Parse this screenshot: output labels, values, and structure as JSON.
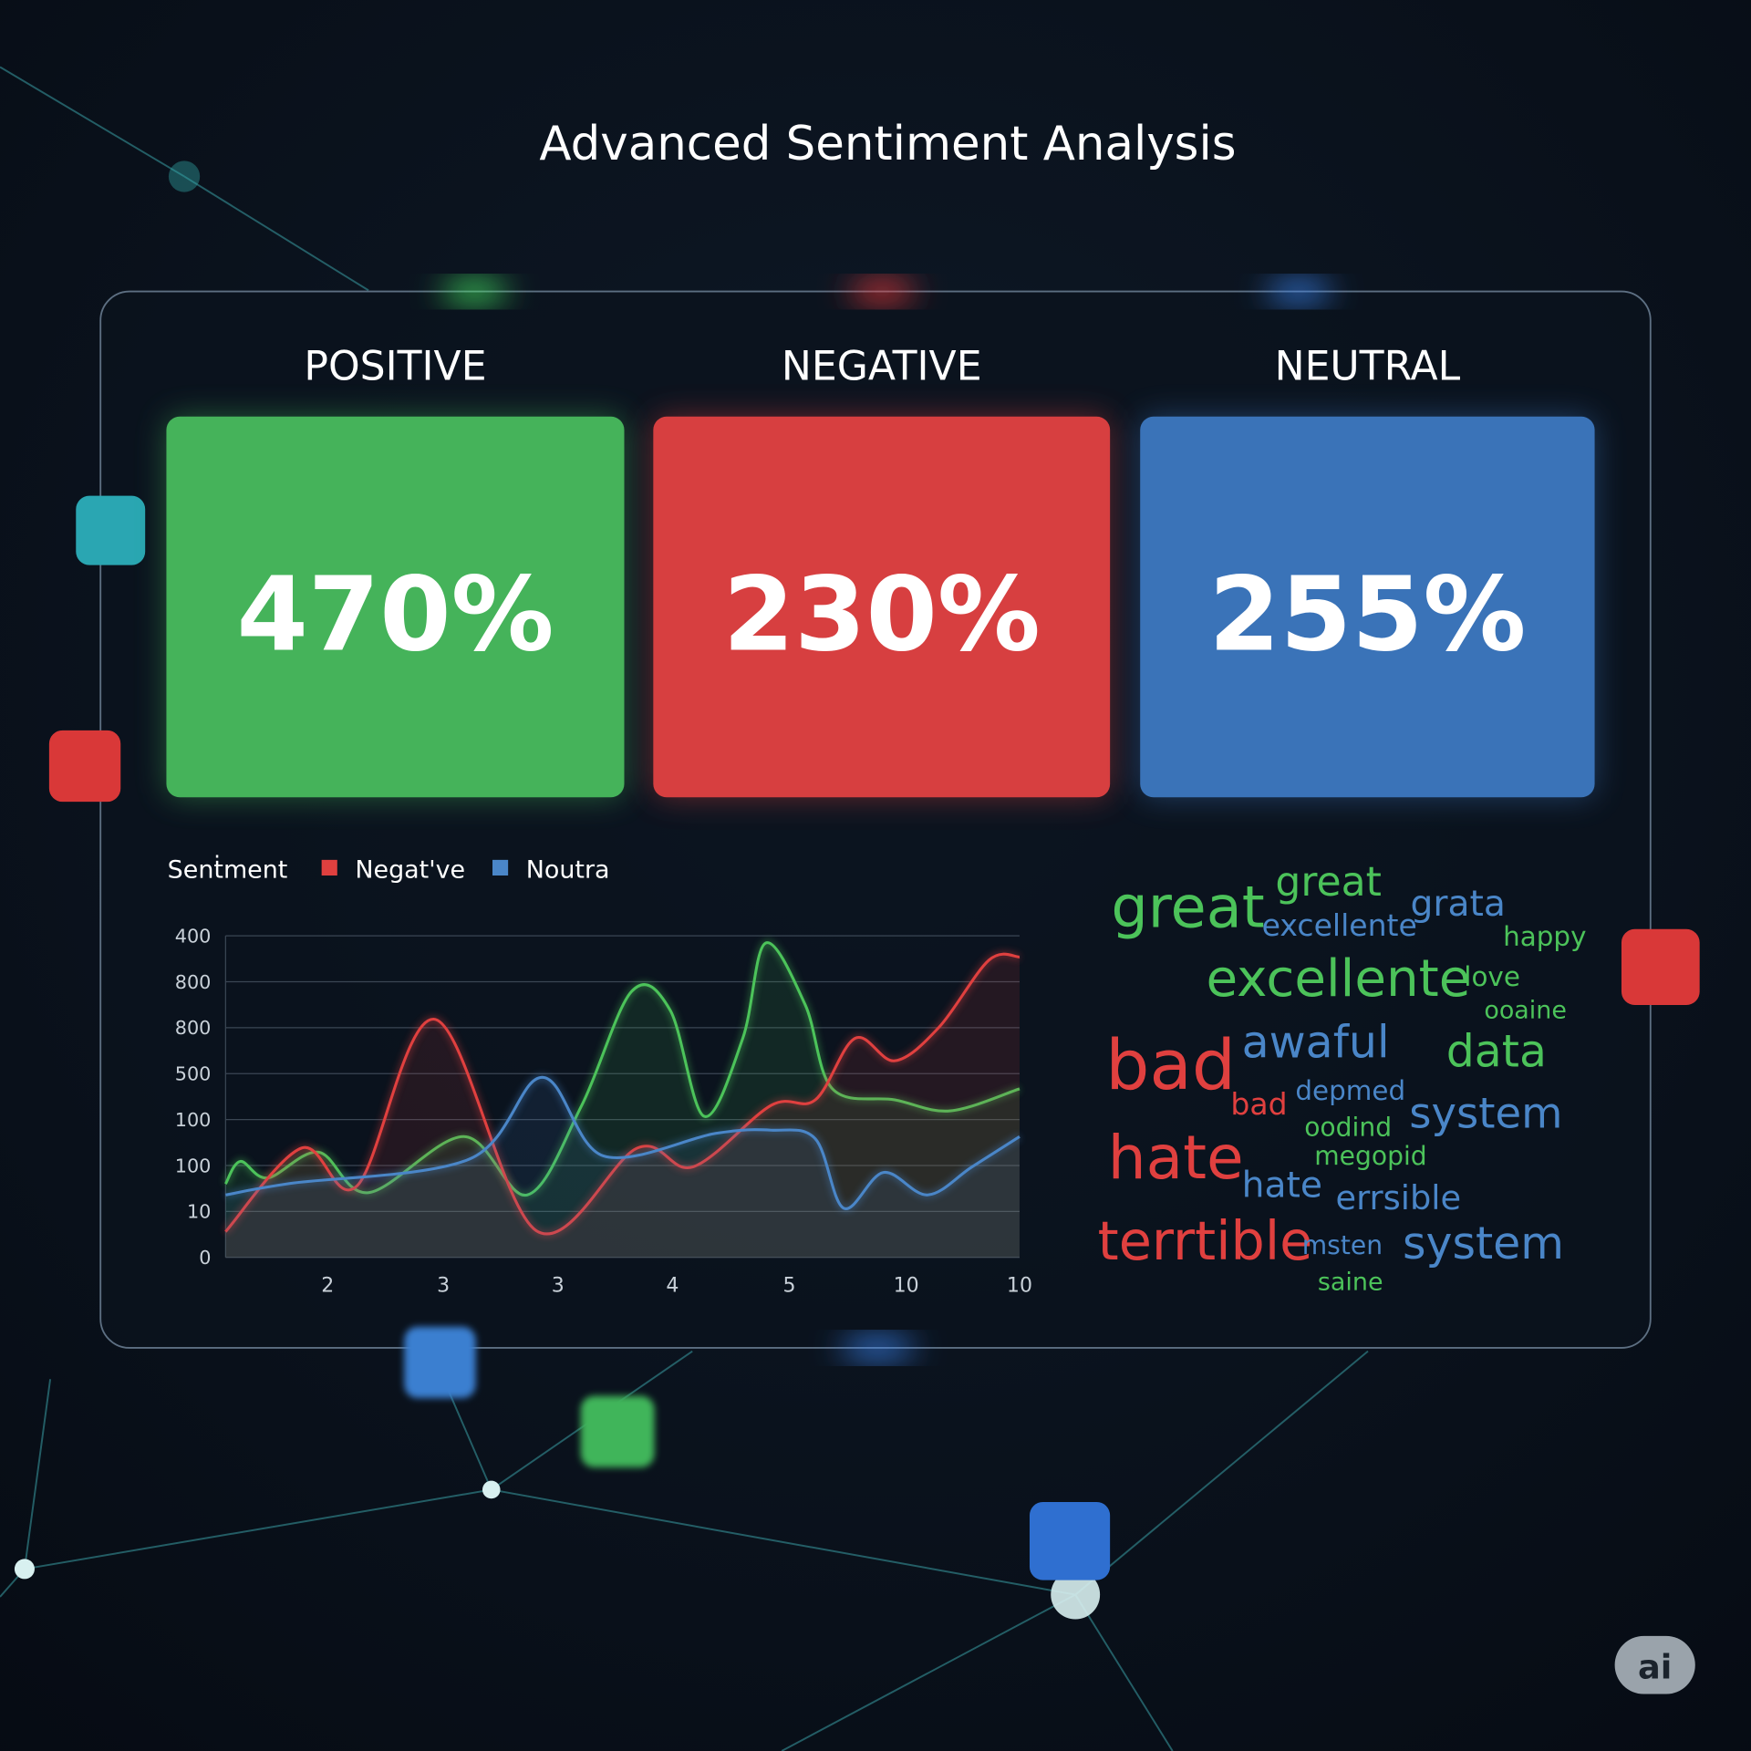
{
  "header": {
    "title": "Advanced Sentiment Analysis"
  },
  "cards": [
    {
      "label": "POSITIVE",
      "value": "470%",
      "color": "#45b35a"
    },
    {
      "label": "NEGATIVE",
      "value": "230%",
      "color": "#d73f40"
    },
    {
      "label": "NEUTRAL",
      "value": "255%",
      "color": "#3a73b8"
    }
  ],
  "chart_data": {
    "type": "line",
    "legend_title": "Senṫment",
    "xlim": [
      0,
      7
    ],
    "xticks": [
      {
        "value": 0.9,
        "label": "2"
      },
      {
        "value": 1.92,
        "label": "3"
      },
      {
        "value": 2.93,
        "label": "3"
      },
      {
        "value": 3.94,
        "label": "4"
      },
      {
        "value": 4.97,
        "label": "5"
      },
      {
        "value": 6,
        "label": "10"
      },
      {
        "value": 7,
        "label": "10"
      }
    ],
    "ylim": [
      0,
      7
    ],
    "yticks": [
      0,
      {
        "value": 1,
        "label": "10"
      },
      {
        "value": 2,
        "label": "100"
      },
      {
        "value": 3,
        "label": "100"
      },
      {
        "value": 4,
        "label": "500"
      },
      {
        "value": 5,
        "label": "800"
      },
      {
        "value": 6,
        "label": "800"
      },
      {
        "value": 7,
        "label": "400"
      }
    ],
    "grid": true,
    "series": [
      {
        "color": "#4cc35a",
        "x": [
          0,
          0.13,
          0.37,
          0.82,
          1.26,
          2.1,
          2.66,
          3.14,
          3.58,
          3.92,
          4.22,
          4.56,
          4.76,
          5.11,
          5.35,
          5.9,
          6.39,
          7
        ],
        "values": [
          1.6,
          2.09,
          1.73,
          2.29,
          1.41,
          2.63,
          1.36,
          3.31,
          5.79,
          5.38,
          3.07,
          4.77,
          6.84,
          5.5,
          3.67,
          3.43,
          3.19,
          3.67
        ]
      },
      {
        "name": "Negat've",
        "color": "#e0403f",
        "x": [
          0,
          0.67,
          1.16,
          1.85,
          2.74,
          3.63,
          4.12,
          4.81,
          5.2,
          5.55,
          5.9,
          6.29,
          6.73,
          7
        ],
        "values": [
          0.56,
          2.38,
          1.56,
          5.18,
          0.58,
          2.38,
          1.97,
          3.31,
          3.43,
          4.77,
          4.28,
          5.01,
          6.47,
          6.54
        ]
      },
      {
        "name": "Noutra",
        "color": "#4a86c8",
        "x": [
          0,
          0.57,
          2.15,
          2.79,
          3.33,
          4.32,
          4.81,
          5.2,
          5.45,
          5.8,
          6.19,
          6.58,
          7
        ],
        "values": [
          1.36,
          1.61,
          2.14,
          3.92,
          2.21,
          2.7,
          2.77,
          2.58,
          1.07,
          1.85,
          1.36,
          1.97,
          2.63
        ]
      }
    ]
  },
  "word_cloud": [
    {
      "text": "great",
      "color": "#4cc35a"
    },
    {
      "text": "great",
      "color": "#4cc35a"
    },
    {
      "text": "excellente",
      "color": "#4a86c8"
    },
    {
      "text": "grata",
      "color": "#4a86c8"
    },
    {
      "text": "happy",
      "color": "#4cc35a"
    },
    {
      "text": "excellente",
      "color": "#4cc35a"
    },
    {
      "text": "love",
      "color": "#4cc35a"
    },
    {
      "text": "ooaine",
      "color": "#4cc35a"
    },
    {
      "text": "bad",
      "color": "#e0403f"
    },
    {
      "text": "awaful",
      "color": "#4a86c8"
    },
    {
      "text": "data",
      "color": "#4cc35a"
    },
    {
      "text": "bad",
      "color": "#e0403f"
    },
    {
      "text": "depmed",
      "color": "#4a86c8"
    },
    {
      "text": "system",
      "color": "#4a86c8"
    },
    {
      "text": "oodind",
      "color": "#4cc35a"
    },
    {
      "text": "hate",
      "color": "#e0403f"
    },
    {
      "text": "megopid",
      "color": "#4cc35a"
    },
    {
      "text": "hate",
      "color": "#4a86c8"
    },
    {
      "text": "errsible",
      "color": "#4a86c8"
    },
    {
      "text": "terrtible",
      "color": "#e0403f"
    },
    {
      "text": "msten",
      "color": "#4a86c8"
    },
    {
      "text": "system",
      "color": "#4a86c8"
    },
    {
      "text": "saine",
      "color": "#4cc35a"
    }
  ],
  "badge": "ai"
}
